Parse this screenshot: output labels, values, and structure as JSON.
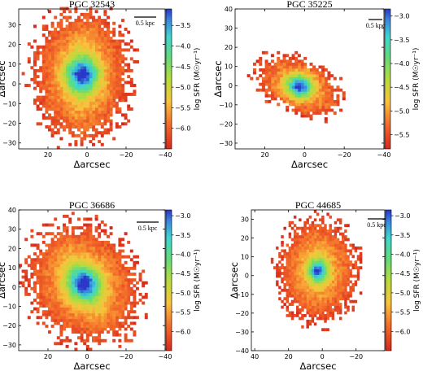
{
  "chart_data": [
    {
      "type": "heatmap",
      "title": "PGC 32543",
      "xlabel": "Δarcsec",
      "ylabel": "Δarcsec",
      "xlim": [
        35,
        -40
      ],
      "ylim": [
        -33,
        38
      ],
      "xticks": [
        "20",
        "0",
        "−20",
        "−40"
      ],
      "xtick_values": [
        20,
        0,
        -20,
        -40
      ],
      "yticks": [
        "−30",
        "−20",
        "−10",
        "0",
        "10",
        "20",
        "30"
      ],
      "ytick_values": [
        -30,
        -20,
        -10,
        0,
        10,
        20,
        30
      ],
      "colorbar_label": "log SFR (M☉yr⁻¹)",
      "colorbar_range": [
        -6.5,
        -3.1
      ],
      "colorbar_ticks": [
        "−3.5",
        "−4.0",
        "−4.5",
        "−5.0",
        "−5.5",
        "−6.0"
      ],
      "colorbar_tick_values": [
        -3.5,
        -4.0,
        -4.5,
        -5.0,
        -5.5,
        -6.0
      ],
      "scale_bar": "0.5 kpc",
      "grid": false,
      "map": {
        "cx": 2,
        "cy": 4,
        "rx": 26,
        "ry": 35,
        "angle": 0,
        "peak": -3.2,
        "floor": -6.3,
        "core": 6,
        "bar": 1.6
      }
    },
    {
      "type": "heatmap",
      "title": "PGC 35225",
      "xlabel": "Δarcsec",
      "ylabel": "Δarcsec",
      "xlim": [
        35,
        -40
      ],
      "ylim": [
        -33,
        40
      ],
      "xticks": [
        "20",
        "0",
        "−20",
        "−40"
      ],
      "xtick_values": [
        20,
        0,
        -20,
        -40
      ],
      "yticks": [
        "−30",
        "−20",
        "−10",
        "0",
        "10",
        "20",
        "30",
        "40"
      ],
      "ytick_values": [
        -30,
        -20,
        -10,
        0,
        10,
        20,
        30,
        40
      ],
      "colorbar_label": "log SFR (M☉yr⁻¹)",
      "colorbar_range": [
        -5.8,
        -2.85
      ],
      "colorbar_ticks": [
        "−3.0",
        "−3.5",
        "−4.0",
        "−4.5",
        "−5.0",
        "−5.5"
      ],
      "colorbar_tick_values": [
        -3.0,
        -3.5,
        -4.0,
        -4.5,
        -5.0,
        -5.5
      ],
      "scale_bar": "0.5 kpc",
      "grid": false,
      "map": {
        "cx": 2,
        "cy": -1,
        "rx": 24,
        "ry": 14,
        "angle": -25,
        "peak": -2.9,
        "floor": -5.6,
        "core": 4,
        "bar": 1.0
      }
    },
    {
      "type": "heatmap",
      "title": "PGC 36686",
      "xlabel": "Δarcsec",
      "ylabel": "Δarcsec",
      "xlim": [
        35,
        -40
      ],
      "ylim": [
        -33,
        40
      ],
      "xticks": [
        "20",
        "0",
        "−20",
        "−40"
      ],
      "xtick_values": [
        20,
        0,
        -20,
        -40
      ],
      "yticks": [
        "−30",
        "−20",
        "−10",
        "0",
        "10",
        "20",
        "30",
        "40"
      ],
      "ytick_values": [
        -30,
        -20,
        -10,
        0,
        10,
        20,
        30,
        40
      ],
      "colorbar_label": "log SFR (M☉yr⁻¹)",
      "colorbar_range": [
        -6.5,
        -2.85
      ],
      "colorbar_ticks": [
        "−3.0",
        "−3.5",
        "−4.0",
        "−4.5",
        "−5.0",
        "−5.5",
        "−6.0"
      ],
      "colorbar_tick_values": [
        -3.0,
        -3.5,
        -4.0,
        -4.5,
        -5.0,
        -5.5,
        -6.0
      ],
      "scale_bar": "0.5 kpc",
      "grid": false,
      "map": {
        "cx": 1,
        "cy": 1,
        "rx": 29,
        "ry": 34,
        "angle": 30,
        "peak": -3.0,
        "floor": -6.3,
        "core": 6,
        "bar": 2.0
      }
    },
    {
      "type": "heatmap",
      "title": "PGC 44685",
      "xlabel": "Δarcsec",
      "ylabel": "Δarcsec",
      "xlim": [
        42,
        -37
      ],
      "ylim": [
        -40,
        35
      ],
      "xticks": [
        "40",
        "20",
        "0",
        "−20"
      ],
      "xtick_values": [
        40,
        20,
        0,
        -20
      ],
      "yticks": [
        "−40",
        "−30",
        "−20",
        "−10",
        "0",
        "10",
        "20",
        "30"
      ],
      "ytick_values": [
        -40,
        -30,
        -20,
        -10,
        0,
        10,
        20,
        30
      ],
      "colorbar_label": "log SFR (M☉yr⁻¹)",
      "colorbar_range": [
        -6.5,
        -2.85
      ],
      "colorbar_ticks": [
        "−3.0",
        "−3.5",
        "−4.0",
        "−4.5",
        "−5.0",
        "−5.5",
        "−6.0"
      ],
      "colorbar_tick_values": [
        -3.0,
        -3.5,
        -4.0,
        -4.5,
        -5.0,
        -5.5,
        -6.0
      ],
      "scale_bar": "0.5 kpc",
      "grid": false,
      "map": {
        "cx": 2,
        "cy": 2,
        "rx": 25,
        "ry": 28,
        "angle": 0,
        "peak": -3.0,
        "floor": -6.3,
        "core": 4,
        "bar": 0.8
      }
    }
  ]
}
